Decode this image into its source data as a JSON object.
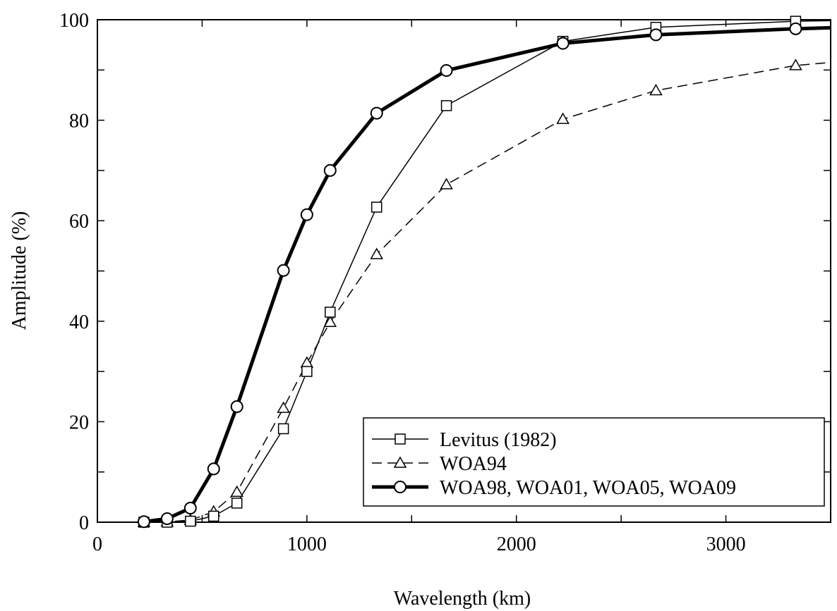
{
  "chart_data": {
    "type": "line",
    "xlabel": "Wavelength (km)",
    "ylabel": "Amplitude (%)",
    "xlim": [
      0,
      3500
    ],
    "ylim": [
      0,
      100
    ],
    "x_ticks": [
      0,
      1000,
      2000,
      3000
    ],
    "x_tick_labels": [
      "0",
      "1000",
      "2000",
      "3000"
    ],
    "y_ticks": [
      0,
      20,
      40,
      60,
      80,
      100
    ],
    "y_tick_labels": [
      "0",
      "20",
      "40",
      "60",
      "80",
      "100"
    ],
    "grid": false,
    "legend_position": "bottom-right",
    "series": [
      {
        "name": "Levitus (1982)",
        "line_style": "solid-thin",
        "marker": "square",
        "color": "#000000",
        "points": [
          [
            222,
            0.0
          ],
          [
            333,
            0.0
          ],
          [
            444,
            0.2
          ],
          [
            555,
            1.2
          ],
          [
            666,
            3.8
          ],
          [
            888,
            18.6
          ],
          [
            1000,
            30.0
          ],
          [
            1111,
            41.8
          ],
          [
            1333,
            62.7
          ],
          [
            1666,
            82.9
          ],
          [
            2222,
            95.7
          ],
          [
            2666,
            98.5
          ],
          [
            3333,
            99.7
          ],
          [
            3500,
            99.8
          ]
        ]
      },
      {
        "name": "WOA94",
        "line_style": "dashed",
        "marker": "triangle",
        "color": "#000000",
        "points": [
          [
            222,
            0.0
          ],
          [
            333,
            0.1
          ],
          [
            444,
            0.4
          ],
          [
            555,
            2.1
          ],
          [
            666,
            6.0
          ],
          [
            888,
            22.7
          ],
          [
            1000,
            31.7
          ],
          [
            1111,
            39.8
          ],
          [
            1333,
            53.3
          ],
          [
            1666,
            67.2
          ],
          [
            2222,
            80.2
          ],
          [
            2666,
            85.9
          ],
          [
            3333,
            90.9
          ],
          [
            3500,
            91.5
          ]
        ]
      },
      {
        "name": "WOA98, WOA01, WOA05, WOA09",
        "line_style": "solid-thick",
        "marker": "circle",
        "color": "#000000",
        "points": [
          [
            222,
            0.1
          ],
          [
            333,
            0.7
          ],
          [
            444,
            2.8
          ],
          [
            555,
            10.6
          ],
          [
            666,
            23.0
          ],
          [
            888,
            50.1
          ],
          [
            1000,
            61.2
          ],
          [
            1111,
            70.0
          ],
          [
            1333,
            81.4
          ],
          [
            1666,
            89.9
          ],
          [
            2222,
            95.3
          ],
          [
            2666,
            97.0
          ],
          [
            3333,
            98.2
          ],
          [
            3500,
            98.4
          ]
        ]
      }
    ]
  }
}
